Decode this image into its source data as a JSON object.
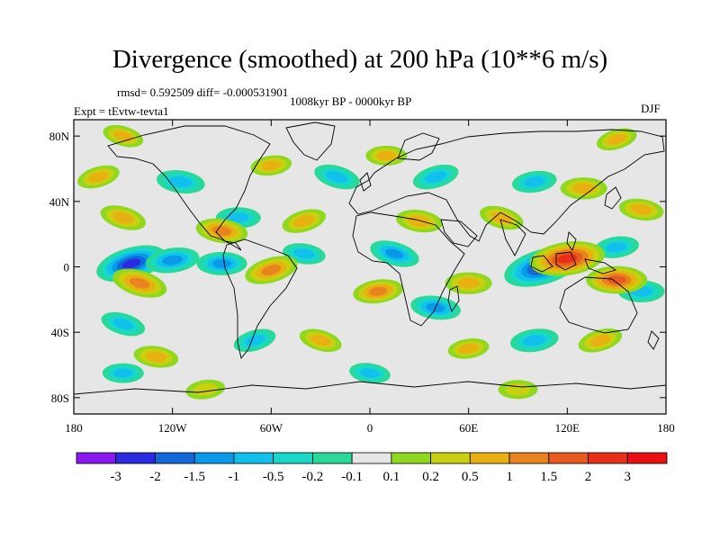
{
  "chart_data": {
    "type": "heatmap",
    "title": "Divergence (smoothed) at 200 hPa (10**6 m/s)",
    "stats": "rmsd= 0.592509 diff= -0.000531901",
    "period": "1008kyr BP - 0000kyr BP",
    "experiment": "Expt = tEvtw-tevta1",
    "season": "DJF",
    "x_range": [
      -180,
      180
    ],
    "y_range": [
      -90,
      90
    ],
    "x_ticks": [
      {
        "value": -180,
        "label": "180"
      },
      {
        "value": -120,
        "label": "120W"
      },
      {
        "value": -60,
        "label": "60W"
      },
      {
        "value": 0,
        "label": "0"
      },
      {
        "value": 60,
        "label": "60E"
      },
      {
        "value": 120,
        "label": "120E"
      },
      {
        "value": 180,
        "label": "180"
      }
    ],
    "y_ticks": [
      {
        "value": 80,
        "label": "80N"
      },
      {
        "value": 40,
        "label": "40N"
      },
      {
        "value": 0,
        "label": "0"
      },
      {
        "value": -40,
        "label": "40S"
      },
      {
        "value": -80,
        "label": "80S"
      }
    ],
    "colorbar": {
      "levels": [
        "-3",
        "-2",
        "-1.5",
        "-1",
        "-0.5",
        "-0.2",
        "-0.1",
        "0.1",
        "0.2",
        "0.5",
        "1",
        "1.5",
        "2",
        "3"
      ],
      "colors": [
        "#8a18f0",
        "#2a2ae0",
        "#1268d8",
        "#0a98e8",
        "#12c0ee",
        "#18d8c8",
        "#2ad898",
        "#e6e6e6",
        "#90d820",
        "#c8d010",
        "#e8b010",
        "#e88420",
        "#e85a20",
        "#e83018",
        "#e81010"
      ]
    },
    "features": [
      {
        "lon": -145,
        "lat": 2,
        "value": -2.2
      },
      {
        "lon": -120,
        "lat": 4,
        "value": -1.2
      },
      {
        "lon": -90,
        "lat": 2,
        "value": -1.0
      },
      {
        "lon": -40,
        "lat": 8,
        "value": -0.6
      },
      {
        "lon": 15,
        "lat": 8,
        "value": -1.0
      },
      {
        "lon": 105,
        "lat": 0,
        "value": -2.6
      },
      {
        "lon": 150,
        "lat": 12,
        "value": -0.7
      },
      {
        "lon": 165,
        "lat": -15,
        "value": -0.8
      },
      {
        "lon": -115,
        "lat": 52,
        "value": -0.9
      },
      {
        "lon": -20,
        "lat": 55,
        "value": -0.8
      },
      {
        "lon": 40,
        "lat": 55,
        "value": -0.8
      },
      {
        "lon": 100,
        "lat": 52,
        "value": -0.7
      },
      {
        "lon": -80,
        "lat": 30,
        "value": -0.7
      },
      {
        "lon": 40,
        "lat": -25,
        "value": -1.0
      },
      {
        "lon": -150,
        "lat": -35,
        "value": -0.7
      },
      {
        "lon": -70,
        "lat": -45,
        "value": -0.6
      },
      {
        "lon": 100,
        "lat": -45,
        "value": -0.9
      },
      {
        "lon": -150,
        "lat": -65,
        "value": -0.5
      },
      {
        "lon": 0,
        "lat": -65,
        "value": -0.5
      },
      {
        "lon": -140,
        "lat": -10,
        "value": 1.3
      },
      {
        "lon": -60,
        "lat": -2,
        "value": 1.2
      },
      {
        "lon": 120,
        "lat": 5,
        "value": 2.4
      },
      {
        "lon": 150,
        "lat": -8,
        "value": 1.6
      },
      {
        "lon": -90,
        "lat": 22,
        "value": 1.1
      },
      {
        "lon": -150,
        "lat": 30,
        "value": 0.8
      },
      {
        "lon": -40,
        "lat": 28,
        "value": 0.7
      },
      {
        "lon": 5,
        "lat": -15,
        "value": 1.0
      },
      {
        "lon": 60,
        "lat": -10,
        "value": 0.8
      },
      {
        "lon": 30,
        "lat": 28,
        "value": 0.8
      },
      {
        "lon": 80,
        "lat": 30,
        "value": 0.7
      },
      {
        "lon": -165,
        "lat": 55,
        "value": 0.6
      },
      {
        "lon": -60,
        "lat": 62,
        "value": 0.5
      },
      {
        "lon": 10,
        "lat": 68,
        "value": 0.5
      },
      {
        "lon": -130,
        "lat": -55,
        "value": 0.7
      },
      {
        "lon": -30,
        "lat": -45,
        "value": 0.6
      },
      {
        "lon": 140,
        "lat": -45,
        "value": 0.7
      },
      {
        "lon": 60,
        "lat": -50,
        "value": 0.5
      },
      {
        "lon": 130,
        "lat": 48,
        "value": 0.8
      },
      {
        "lon": 165,
        "lat": 35,
        "value": 0.7
      },
      {
        "lon": -150,
        "lat": 80,
        "value": 0.5
      },
      {
        "lon": 150,
        "lat": 78,
        "value": 0.5
      },
      {
        "lon": -100,
        "lat": -75,
        "value": 0.4
      },
      {
        "lon": 90,
        "lat": -75,
        "value": 0.4
      }
    ]
  }
}
